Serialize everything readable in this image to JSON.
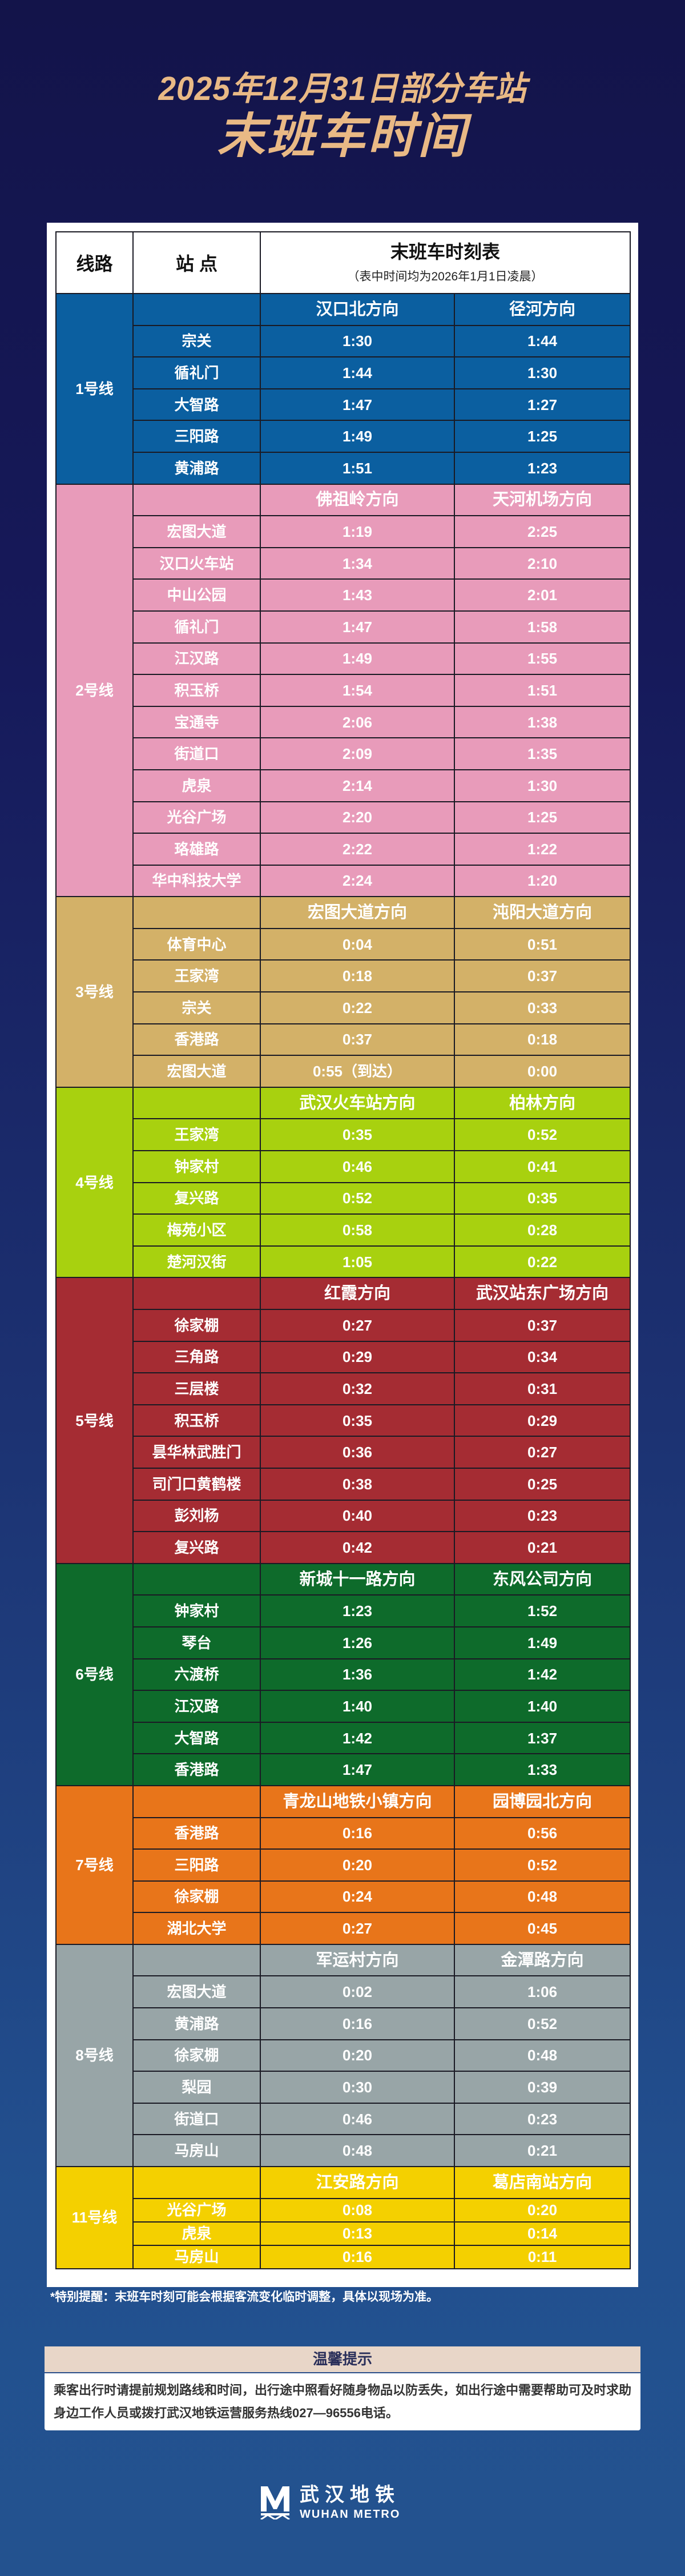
{
  "title": {
    "line1": "2025年12月31日部分车站",
    "line2": "末班车时间"
  },
  "table_header": {
    "line": "线路",
    "station": "站 点",
    "timetable": "末班车时刻表",
    "note": "（表中时间均为2026年1月1日凌晨）"
  },
  "lines": [
    {
      "name": "1号线",
      "color": "#0b5fa0",
      "directions": [
        "汉口北方向",
        "径河方向"
      ],
      "stations": [
        [
          "宗关",
          "1:30",
          "1:44"
        ],
        [
          "循礼门",
          "1:44",
          "1:30"
        ],
        [
          "大智路",
          "1:47",
          "1:27"
        ],
        [
          "三阳路",
          "1:49",
          "1:25"
        ],
        [
          "黄浦路",
          "1:51",
          "1:23"
        ]
      ]
    },
    {
      "name": "2号线",
      "color": "#e89bba",
      "directions": [
        "佛祖岭方向",
        "天河机场方向"
      ],
      "stations": [
        [
          "宏图大道",
          "1:19",
          "2:25"
        ],
        [
          "汉口火车站",
          "1:34",
          "2:10"
        ],
        [
          "中山公园",
          "1:43",
          "2:01"
        ],
        [
          "循礼门",
          "1:47",
          "1:58"
        ],
        [
          "江汉路",
          "1:49",
          "1:55"
        ],
        [
          "积玉桥",
          "1:54",
          "1:51"
        ],
        [
          "宝通寺",
          "2:06",
          "1:38"
        ],
        [
          "街道口",
          "2:09",
          "1:35"
        ],
        [
          "虎泉",
          "2:14",
          "1:30"
        ],
        [
          "光谷广场",
          "2:20",
          "1:25"
        ],
        [
          "珞雄路",
          "2:22",
          "1:22"
        ],
        [
          "华中科技大学",
          "2:24",
          "1:20"
        ]
      ]
    },
    {
      "name": "3号线",
      "color": "#d3b168",
      "directions": [
        "宏图大道方向",
        "沌阳大道方向"
      ],
      "stations": [
        [
          "体育中心",
          "0:04",
          "0:51"
        ],
        [
          "王家湾",
          "0:18",
          "0:37"
        ],
        [
          "宗关",
          "0:22",
          "0:33"
        ],
        [
          "香港路",
          "0:37",
          "0:18"
        ],
        [
          "宏图大道",
          "0:55（到达）",
          "0:00"
        ]
      ]
    },
    {
      "name": "4号线",
      "color": "#a8d10f",
      "directions": [
        "武汉火车站方向",
        "柏林方向"
      ],
      "stations": [
        [
          "王家湾",
          "0:35",
          "0:52"
        ],
        [
          "钟家村",
          "0:46",
          "0:41"
        ],
        [
          "复兴路",
          "0:52",
          "0:35"
        ],
        [
          "梅苑小区",
          "0:58",
          "0:28"
        ],
        [
          "楚河汉街",
          "1:05",
          "0:22"
        ]
      ]
    },
    {
      "name": "5号线",
      "color": "#a52c33",
      "directions": [
        "红霞方向",
        "武汉站东广场方向"
      ],
      "stations": [
        [
          "徐家棚",
          "0:27",
          "0:37"
        ],
        [
          "三角路",
          "0:29",
          "0:34"
        ],
        [
          "三层楼",
          "0:32",
          "0:31"
        ],
        [
          "积玉桥",
          "0:35",
          "0:29"
        ],
        [
          "昙华林武胜门",
          "0:36",
          "0:27"
        ],
        [
          "司门口黄鹤楼",
          "0:38",
          "0:25"
        ],
        [
          "彭刘杨",
          "0:40",
          "0:23"
        ],
        [
          "复兴路",
          "0:42",
          "0:21"
        ]
      ]
    },
    {
      "name": "6号线",
      "color": "#0e6b2b",
      "directions": [
        "新城十一路方向",
        "东风公司方向"
      ],
      "stations": [
        [
          "钟家村",
          "1:23",
          "1:52"
        ],
        [
          "琴台",
          "1:26",
          "1:49"
        ],
        [
          "六渡桥",
          "1:36",
          "1:42"
        ],
        [
          "江汉路",
          "1:40",
          "1:40"
        ],
        [
          "大智路",
          "1:42",
          "1:37"
        ],
        [
          "香港路",
          "1:47",
          "1:33"
        ]
      ]
    },
    {
      "name": "7号线",
      "color": "#e8751a",
      "directions": [
        "青龙山地铁小镇方向",
        "园博园北方向"
      ],
      "stations": [
        [
          "香港路",
          "0:16",
          "0:56"
        ],
        [
          "三阳路",
          "0:20",
          "0:52"
        ],
        [
          "徐家棚",
          "0:24",
          "0:48"
        ],
        [
          "湖北大学",
          "0:27",
          "0:45"
        ]
      ]
    },
    {
      "name": "8号线",
      "color": "#98a5a7",
      "directions": [
        "军运村方向",
        "金潭路方向"
      ],
      "stations": [
        [
          "宏图大道",
          "0:02",
          "1:06"
        ],
        [
          "黄浦路",
          "0:16",
          "0:52"
        ],
        [
          "徐家棚",
          "0:20",
          "0:48"
        ],
        [
          "梨园",
          "0:30",
          "0:39"
        ],
        [
          "街道口",
          "0:46",
          "0:23"
        ],
        [
          "马房山",
          "0:48",
          "0:21"
        ]
      ]
    },
    {
      "name": "11号线",
      "color": "#f4d000",
      "directions": [
        "江安路方向",
        "葛店南站方向"
      ],
      "stations": [
        [
          "光谷广场",
          "0:08",
          "0:20"
        ],
        [
          "虎泉",
          "0:13",
          "0:14"
        ],
        [
          "马房山",
          "0:16",
          "0:11"
        ]
      ]
    }
  ],
  "special_note": "*特别提醒：末班车时刻可能会根据客流变化临时调整，具体以现场为准。",
  "tips": {
    "title": "温馨提示",
    "body": "乘客出行时请提前规划路线和时间，出行途中照看好随身物品以防丢失，如出行途中需要帮助可及时求助身边工作人员或拨打武汉地铁运营服务热线027—96556电话。"
  },
  "logo": {
    "cn": "武汉地铁",
    "en": "WUHAN METRO"
  }
}
